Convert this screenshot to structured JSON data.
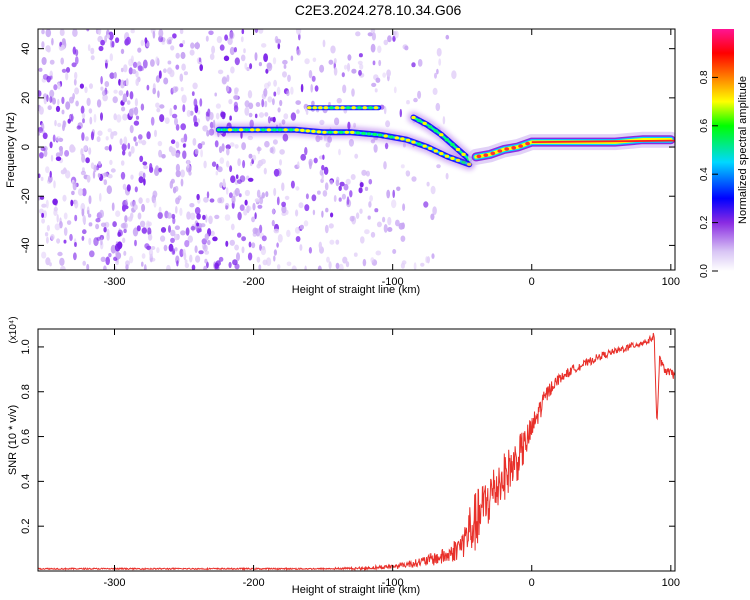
{
  "title": "C2E3.2024.278.10.34.G06",
  "chart_data": [
    {
      "type": "heatmap",
      "xlabel": "Height of straight line (km)",
      "ylabel": "Frequency (Hz)",
      "xlim": [
        -355,
        103
      ],
      "ylim": [
        -50,
        48
      ],
      "xticks": [
        -300,
        -200,
        -100,
        0,
        100
      ],
      "yticks": [
        -40,
        -20,
        0,
        20,
        40
      ],
      "colorbar": {
        "label": "Normalized spectral amplitude",
        "range": [
          0,
          1
        ],
        "ticks": [
          "0.0",
          "0.2",
          "0.4",
          "0.6",
          "0.8"
        ],
        "colormap": [
          "#ffffff",
          "#dcc8f4",
          "#8a2be2",
          "#0000ff",
          "#00d8ff",
          "#00ff00",
          "#ffff00",
          "#ff7f00",
          "#ff0000",
          "#ff1493"
        ]
      },
      "features": [
        {
          "name": "noise_field",
          "x_range": [
            -355,
            -110
          ],
          "f_range": [
            -50,
            48
          ],
          "amplitude": 0.15
        },
        {
          "name": "upper_track",
          "x": [
            -160,
            -150,
            -140,
            -120,
            -110
          ],
          "f": [
            16,
            16,
            16,
            16,
            16
          ],
          "amplitude": 0.35
        },
        {
          "name": "main_track",
          "x": [
            -225,
            -200,
            -170,
            -150,
            -130,
            -110,
            -90,
            -75,
            -60,
            -45
          ],
          "f": [
            7,
            7,
            7,
            6,
            6,
            5,
            3,
            0,
            -4,
            -7
          ],
          "amplitude": 0.45
        },
        {
          "name": "descending_track",
          "x": [
            -85,
            -75,
            -65,
            -55,
            -45
          ],
          "f": [
            12,
            9,
            5,
            0,
            -5
          ],
          "amplitude": 0.5
        },
        {
          "name": "tone",
          "x": [
            -40,
            -30,
            -20,
            -10,
            0,
            20,
            40,
            60,
            80,
            100
          ],
          "f": [
            -4,
            -3,
            -1,
            0,
            2,
            2,
            2,
            2,
            3,
            3
          ],
          "amplitude": 0.95
        }
      ]
    },
    {
      "type": "line",
      "xlabel": "Height of straight line (km)",
      "ylabel": "SNR (10 * v/v)",
      "yscale_label": "(x10⁴)",
      "xlim": [
        -355,
        103
      ],
      "ylim": [
        0,
        1.08
      ],
      "xticks": [
        -300,
        -200,
        -100,
        0,
        100
      ],
      "yticks": [
        0.2,
        0.4,
        0.6,
        0.8,
        1.0
      ],
      "series": [
        {
          "color": "#e8302a",
          "x": [
            -355,
            -300,
            -250,
            -200,
            -150,
            -120,
            -100,
            -80,
            -60,
            -50,
            -45,
            -40,
            -35,
            -30,
            -25,
            -20,
            -15,
            -10,
            -5,
            0,
            5,
            10,
            15,
            20,
            25,
            30,
            40,
            50,
            60,
            70,
            80,
            85,
            88,
            90,
            92,
            95,
            103
          ],
          "y": [
            0.01,
            0.01,
            0.01,
            0.01,
            0.01,
            0.012,
            0.02,
            0.04,
            0.07,
            0.12,
            0.18,
            0.22,
            0.28,
            0.33,
            0.38,
            0.42,
            0.46,
            0.5,
            0.56,
            0.63,
            0.71,
            0.78,
            0.83,
            0.86,
            0.88,
            0.9,
            0.93,
            0.96,
            0.98,
            1.0,
            1.02,
            1.03,
            1.05,
            0.65,
            0.95,
            0.9,
            0.87
          ],
          "noise": [
            0,
            0,
            0,
            0,
            0,
            0.005,
            0.01,
            0.02,
            0.04,
            0.06,
            0.12,
            0.14,
            0.12,
            0.13,
            0.12,
            0.11,
            0.1,
            0.1,
            0.08,
            0.06,
            0.05,
            0.04,
            0.03,
            0.02,
            0.02,
            0.02,
            0.015,
            0.015,
            0.015,
            0.015,
            0.015,
            0.015,
            0.015,
            0,
            0.02,
            0.02,
            0.02
          ]
        }
      ]
    }
  ]
}
